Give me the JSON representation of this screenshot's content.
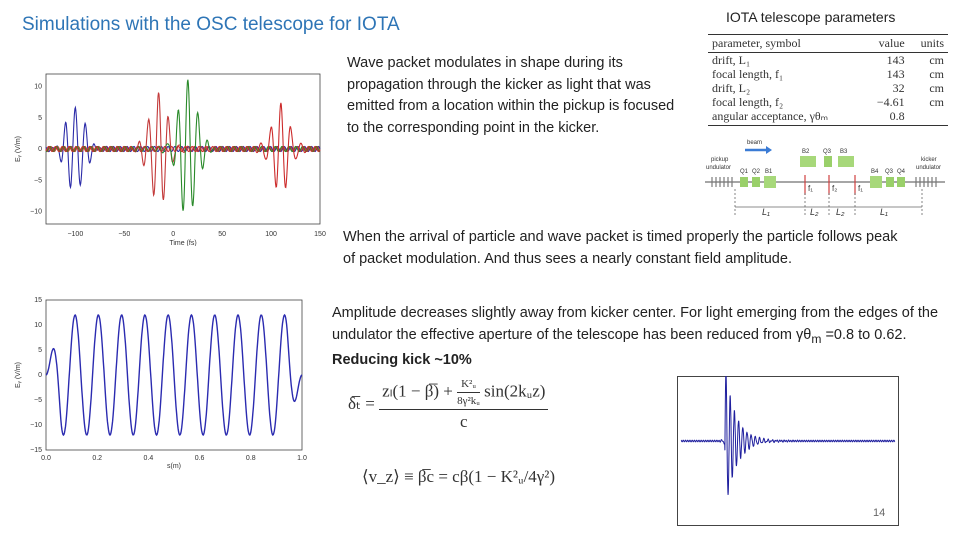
{
  "title": "Simulations with the OSC telescope for IOTA",
  "table_title": "IOTA telescope parameters",
  "param_table": {
    "headers": [
      "parameter, symbol",
      "value",
      "units"
    ],
    "rows": [
      {
        "name": "drift, L₁",
        "value": "143",
        "unit": "cm"
      },
      {
        "name": "focal length, f₁",
        "value": "143",
        "unit": "cm"
      },
      {
        "name": "drift, L₂",
        "value": "32",
        "unit": "cm"
      },
      {
        "name": "focal length, f₂",
        "value": "−4.61",
        "unit": "cm"
      },
      {
        "name": "angular acceptance, γθₘ",
        "value": "0.8",
        "unit": ""
      }
    ]
  },
  "text_wave_packet": "Wave packet modulates in shape during its propagation through the kicker as light that was emitted from a location within the pickup is focused to the corresponding point in the kicker.",
  "text_timing": "When the arrival of particle and wave packet is timed properly the particle follows peak of packet modulation. And thus sees a nearly constant field amplitude.",
  "text_amplitude": "Amplitude decreases slightly away from kicker center. For light emerging from the edges of the undulator the effective aperture of the telescope has been reduced from γθ",
  "text_amplitude_sub": "m",
  "text_amplitude_tail": " =0.8 to 0.62. ",
  "text_amplitude_bold": "Reducing kick ~10%",
  "diagram_labels": {
    "beam": "beam",
    "pickup": "pickup\nundulator",
    "kicker": "kicker\nundulator",
    "q1": "Q1",
    "q2": "Q2",
    "b1": "B1",
    "b2": "B2",
    "q3a": "Q3",
    "b3": "B3",
    "b4": "B4",
    "q3b": "Q3",
    "q4": "Q4",
    "f1a": "f₁",
    "f2": "f₂",
    "f1b": "f₁",
    "L1a": "L₁",
    "L2a": "L₂",
    "L2b": "L₂",
    "L1b": "L₁"
  },
  "eq1": {
    "lhs": "δ̅ₜ =",
    "num_a": "zₗ(1 − β̅) +",
    "num_frac_top": "K²ᵤ",
    "num_frac_bot": "8γ²kᵤ",
    "num_b": "sin(2kᵤz)",
    "den": "c"
  },
  "eq2": "⟨v_z⟩ ≡ β̅c = cβ(1 − K²ᵤ/4γ²)",
  "page_number": "14",
  "chart_data": [
    {
      "type": "line",
      "ylabel": "Eᵧ (V/m)",
      "xlabel": "Time (fs)",
      "xticks": [
        "−100",
        "−50",
        "0",
        "50",
        "100",
        "150"
      ],
      "yticks": [
        "10",
        "5",
        "0",
        "−5",
        "−10"
      ],
      "xlim": [
        -130,
        150
      ],
      "ylim": [
        -12,
        12
      ],
      "series": [
        {
          "center": -100,
          "amp": 7,
          "color": "#2b2ba8"
        },
        {
          "center": -15,
          "amp": 9,
          "color": "#c33a3a"
        },
        {
          "center": 15,
          "amp": 11,
          "color": "#2a8a2a"
        },
        {
          "center": 110,
          "amp": 7,
          "color": "#cc2b2b"
        }
      ]
    },
    {
      "type": "line",
      "ylabel": "Eᵧ (V/m)",
      "xlabel": "s(m)",
      "xticks": [
        "0.0",
        "0.2",
        "0.4",
        "0.6",
        "0.8",
        "1.0"
      ],
      "yticks": [
        "15",
        "10",
        "5",
        "0",
        "−5",
        "−10",
        "−15"
      ],
      "xlim": [
        0,
        1
      ],
      "ylim": [
        -15,
        15
      ],
      "series": [
        {
          "periods": 11,
          "amp": 12,
          "color": "#2b2bb0"
        }
      ]
    },
    {
      "type": "line",
      "xlim": [
        -1,
        1
      ],
      "ylim": [
        -1,
        1
      ],
      "series": [
        {
          "center": -0.55,
          "amp": 0.9,
          "color": "#1f1f9e"
        }
      ]
    }
  ]
}
